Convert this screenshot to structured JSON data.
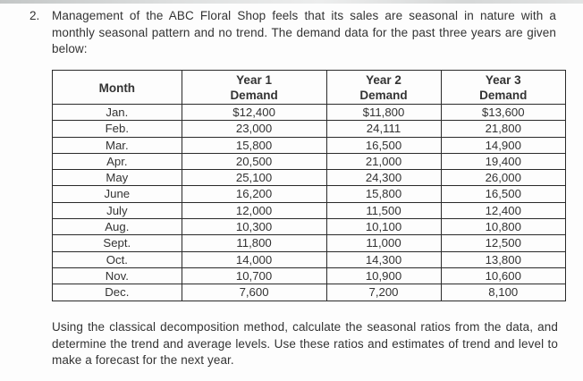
{
  "problem": {
    "number": "2.",
    "intro_text": "Management of the ABC Floral Shop feels that its sales are seasonal in nature with a monthly seasonal pattern and no trend. The demand data for the past three years are given below:",
    "closing_text": "Using the classical decomposition method, calculate the seasonal ratios from the data, and determine the trend and average levels. Use these ratios and estimates of trend and level to make a forecast for the next year."
  },
  "table": {
    "columns": [
      {
        "label": "Month",
        "sub": ""
      },
      {
        "label": "Year 1",
        "sub": "Demand"
      },
      {
        "label": "Year 2",
        "sub": "Demand"
      },
      {
        "label": "Year 3",
        "sub": "Demand"
      }
    ],
    "rows": [
      {
        "month": "Jan.",
        "y1": "$12,400",
        "y2": "$11,800",
        "y3": "$13,600"
      },
      {
        "month": "Feb.",
        "y1": "23,000",
        "y2": "24,111",
        "y3": "21,800"
      },
      {
        "month": "Mar.",
        "y1": "15,800",
        "y2": "16,500",
        "y3": "14,900"
      },
      {
        "month": "Apr.",
        "y1": "20,500",
        "y2": "21,000",
        "y3": "19,400"
      },
      {
        "month": "May",
        "y1": "25,100",
        "y2": "24,300",
        "y3": "26,000"
      },
      {
        "month": "June",
        "y1": "16,200",
        "y2": "15,800",
        "y3": "16,500"
      },
      {
        "month": "July",
        "y1": "12,000",
        "y2": "11,500",
        "y3": "12,400"
      },
      {
        "month": "Aug.",
        "y1": "10,300",
        "y2": "10,100",
        "y3": "10,800"
      },
      {
        "month": "Sept.",
        "y1": "11,800",
        "y2": "11,000",
        "y3": "12,500"
      },
      {
        "month": "Oct.",
        "y1": "14,000",
        "y2": "14,300",
        "y3": "13,800"
      },
      {
        "month": "Nov.",
        "y1": "10,700",
        "y2": "10,900",
        "y3": "10,600"
      },
      {
        "month": "Dec.",
        "y1": "7,600",
        "y2": "7,200",
        "y3": "8,100"
      }
    ]
  },
  "colors": {
    "background": "#fdfdfd",
    "text": "#333333",
    "table_border": "#2a2a2a"
  }
}
